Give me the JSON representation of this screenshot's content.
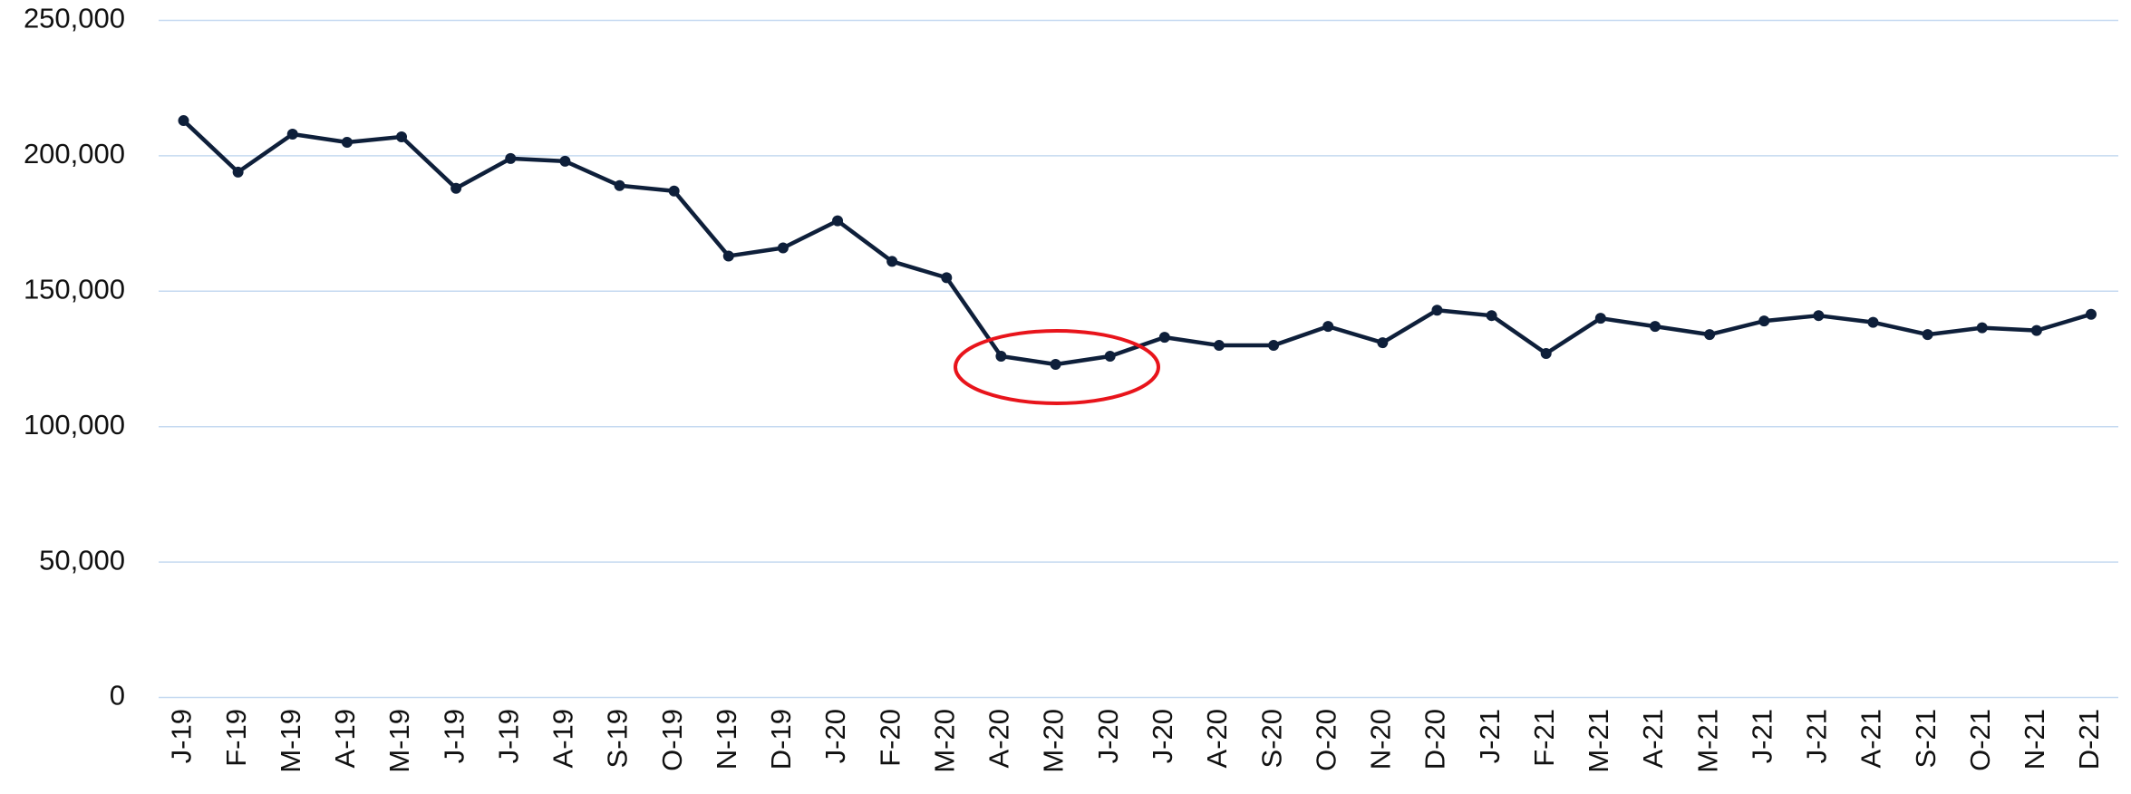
{
  "chart_data": {
    "type": "line",
    "categories": [
      "J-19",
      "F-19",
      "M-19",
      "A-19",
      "M-19",
      "J-19",
      "J-19",
      "A-19",
      "S-19",
      "O-19",
      "N-19",
      "D-19",
      "J-20",
      "F-20",
      "M-20",
      "A-20",
      "M-20",
      "J-20",
      "J-20",
      "A-20",
      "S-20",
      "O-20",
      "N-20",
      "D-20",
      "J-21",
      "F-21",
      "M-21",
      "A-21",
      "M-21",
      "J-21",
      "J-21",
      "A-21",
      "S-21",
      "O-21",
      "N-21",
      "D-21"
    ],
    "values": [
      213000,
      194000,
      208000,
      205000,
      207000,
      188000,
      199000,
      198000,
      189000,
      187000,
      163000,
      166000,
      176000,
      161000,
      155000,
      126000,
      123000,
      126000,
      133000,
      130000,
      130000,
      137000,
      131000,
      143000,
      141000,
      127000,
      140000,
      137000,
      134000,
      139000,
      141000,
      138500,
      134000,
      136500,
      135500,
      141500
    ],
    "color": "#0e1f3a",
    "ylim": [
      0,
      250000
    ],
    "yticks": [
      0,
      {
        "value": 50000,
        "label": "50,000"
      },
      {
        "value": 100000,
        "label": "100,000"
      },
      {
        "value": 150000,
        "label": "150,000"
      },
      {
        "value": 200000,
        "label": "200,000"
      },
      {
        "value": 250000,
        "label": "250,000"
      }
    ],
    "grid": true,
    "grid_color": "#c5d9f1"
  }
}
